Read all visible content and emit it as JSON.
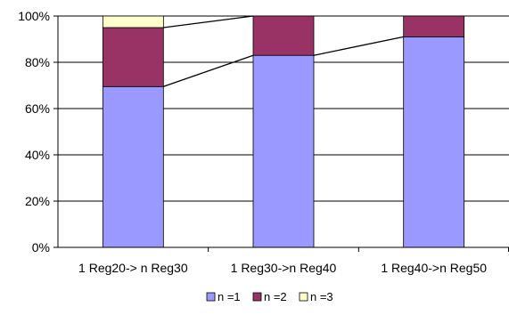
{
  "chart_data": {
    "type": "bar",
    "stacked": true,
    "percent_stacked": true,
    "categories": [
      "1 Reg20-> n Reg30",
      "1 Reg30->n Reg40",
      "1 Reg40->n Reg50"
    ],
    "series": [
      {
        "name": "n =1",
        "values": [
          69.5,
          83,
          91
        ],
        "color": "#9999ff"
      },
      {
        "name": "n =2",
        "values": [
          25.5,
          17,
          9
        ],
        "color": "#993366"
      },
      {
        "name": "n =3",
        "values": [
          5,
          0,
          0
        ],
        "color": "#ffffcc"
      }
    ],
    "y_ticks": [
      "0%",
      "20%",
      "40%",
      "60%",
      "80%",
      "100%"
    ],
    "ylim": [
      0,
      100
    ],
    "grid": true,
    "series_lines": true,
    "legend": "bottom",
    "title": "",
    "xlabel": "",
    "ylabel": ""
  }
}
